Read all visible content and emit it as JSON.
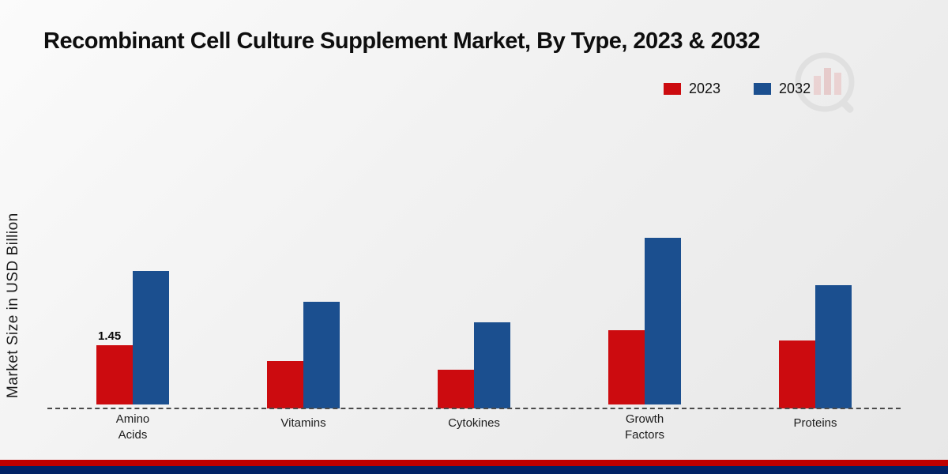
{
  "chart_data": {
    "type": "bar",
    "title": "Recombinant Cell Culture Supplement Market, By Type, 2023 & 2032",
    "ylabel": "Market Size in USD Billion",
    "xlabel": "",
    "categories": [
      "Amino Acids",
      "Vitamins",
      "Cytokines",
      "Growth Factors",
      "Proteins"
    ],
    "series": [
      {
        "name": "2023",
        "color": "#cc0b0f",
        "values": [
          1.45,
          1.15,
          0.95,
          1.8,
          1.65
        ],
        "labels": [
          "1.45",
          "",
          "",
          "",
          ""
        ]
      },
      {
        "name": "2032",
        "color": "#1b4f8f",
        "values": [
          3.25,
          2.6,
          2.1,
          4.05,
          3.0
        ],
        "labels": [
          "",
          "",
          "",
          "",
          ""
        ]
      }
    ],
    "ylim": [
      0,
      4.5
    ],
    "grid": "off",
    "baseline_style": "dashed",
    "legend_position": "top-right"
  },
  "footer": {
    "stripe_red": "#c00000",
    "stripe_navy": "#022366"
  },
  "watermark": {
    "name": "market-research-logo",
    "circle_color": "#d9d9d9",
    "bar_color": "#e8bdbd"
  }
}
